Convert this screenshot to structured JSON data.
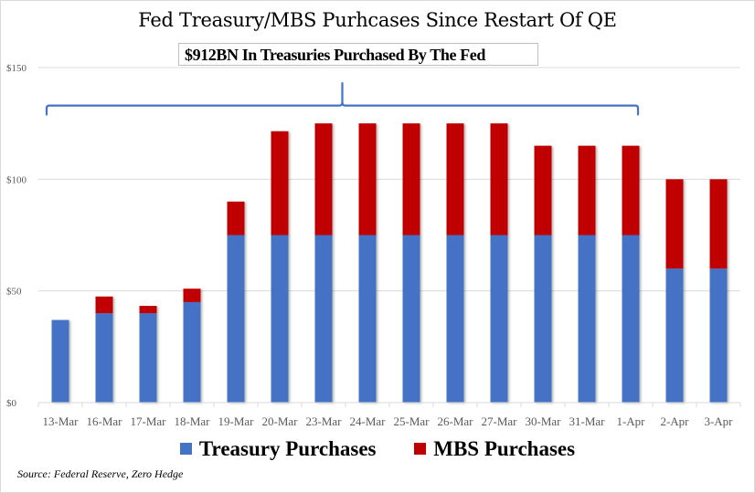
{
  "chart_data": {
    "type": "bar",
    "stacked": true,
    "title": "Fed Treasury/MBS Purhcases Since Restart Of QE",
    "annotation": "$912BN In Treasuries Purchased By The Fed",
    "annotation_span": [
      "13-Mar",
      "1-Apr"
    ],
    "xlabel": "",
    "ylabel": "",
    "ylim": [
      0,
      150
    ],
    "yticks": [
      0,
      50,
      100,
      150
    ],
    "ytick_labels": [
      "$0",
      "$50",
      "$100",
      "$150"
    ],
    "grid": true,
    "legend_position": "bottom",
    "categories": [
      "13-Mar",
      "16-Mar",
      "17-Mar",
      "18-Mar",
      "19-Mar",
      "20-Mar",
      "23-Mar",
      "24-Mar",
      "25-Mar",
      "26-Mar",
      "27-Mar",
      "30-Mar",
      "31-Mar",
      "1-Apr",
      "2-Apr",
      "3-Apr"
    ],
    "series": [
      {
        "name": "Treasury Purchases",
        "color": "#4472C4",
        "values": [
          37,
          40,
          40,
          45,
          75,
          75,
          75,
          75,
          75,
          75,
          75,
          75,
          75,
          75,
          60,
          60
        ]
      },
      {
        "name": "MBS Purchases",
        "color": "#C00000",
        "values": [
          0,
          7.5,
          3.3,
          6,
          15,
          46.5,
          50,
          50,
          50,
          50,
          50,
          40,
          40,
          40,
          40,
          40
        ]
      }
    ],
    "source": "Source: Federal Reserve, Zero Hedge"
  }
}
